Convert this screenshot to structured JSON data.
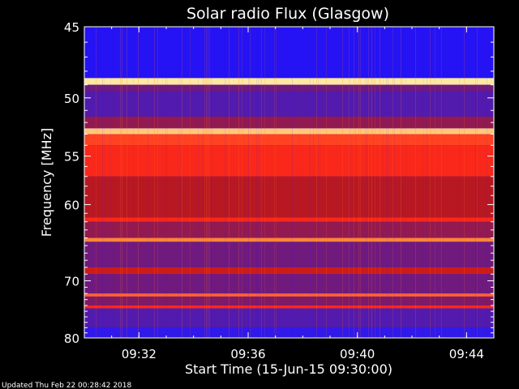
{
  "chart_data": {
    "type": "heatmap",
    "title": "Solar radio Flux (Glasgow)",
    "xlabel": "Start Time (15-Jun-15 09:30:00)",
    "ylabel": "Frequency [MHz]",
    "x_ticks": [
      "09:32",
      "09:36",
      "09:40",
      "09:44"
    ],
    "x_tick_minutes": [
      2,
      6,
      10,
      14
    ],
    "xlim_minutes": [
      0,
      15
    ],
    "y_ticks": [
      45,
      50,
      55,
      60,
      70,
      80
    ],
    "ylim": [
      45,
      80
    ],
    "y_scale": "reciprocal",
    "colormap": [
      "#1a0dff",
      "#3a1ee0",
      "#5a1a9c",
      "#8a1a5a",
      "#c01818",
      "#ff2a1a",
      "#ff8a3a",
      "#ffe9a0"
    ],
    "bands": [
      {
        "from": 45.0,
        "to": 48.5,
        "level": 0.05
      },
      {
        "from": 48.5,
        "to": 49.0,
        "level": 1.0
      },
      {
        "from": 49.0,
        "to": 49.5,
        "level": 0.35
      },
      {
        "from": 49.5,
        "to": 51.5,
        "level": 0.25
      },
      {
        "from": 51.5,
        "to": 52.5,
        "level": 0.45
      },
      {
        "from": 52.5,
        "to": 53.0,
        "level": 0.95
      },
      {
        "from": 53.0,
        "to": 54.0,
        "level": 0.75
      },
      {
        "from": 54.0,
        "to": 57.0,
        "level": 0.7
      },
      {
        "from": 57.0,
        "to": 61.5,
        "level": 0.55
      },
      {
        "from": 61.5,
        "to": 62.0,
        "level": 0.7
      },
      {
        "from": 62.0,
        "to": 64.0,
        "level": 0.45
      },
      {
        "from": 64.0,
        "to": 64.5,
        "level": 0.85
      },
      {
        "from": 64.5,
        "to": 68.0,
        "level": 0.35
      },
      {
        "from": 68.0,
        "to": 69.0,
        "level": 0.6
      },
      {
        "from": 69.0,
        "to": 72.0,
        "level": 0.35
      },
      {
        "from": 72.0,
        "to": 72.5,
        "level": 0.8
      },
      {
        "from": 72.5,
        "to": 74.0,
        "level": 0.4
      },
      {
        "from": 74.0,
        "to": 74.5,
        "level": 0.7
      },
      {
        "from": 74.5,
        "to": 78.0,
        "level": 0.25
      },
      {
        "from": 78.0,
        "to": 80.0,
        "level": 0.1
      }
    ]
  },
  "footer": {
    "updated": "Updated Thu Feb 22 00:28:42 2018"
  }
}
